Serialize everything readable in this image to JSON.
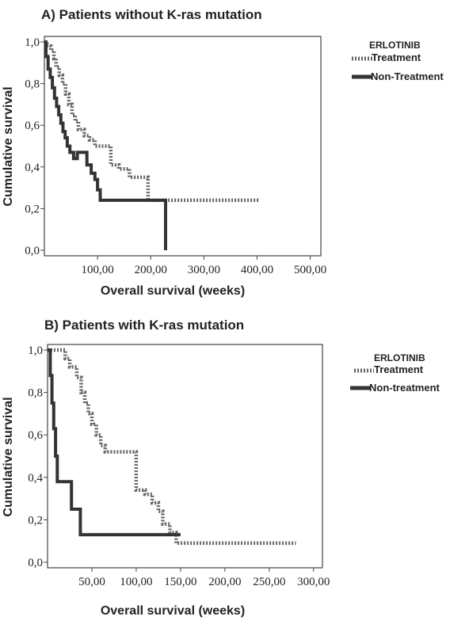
{
  "chart_data": [
    {
      "type": "line",
      "title": "A) Patients without K-ras mutation",
      "xlabel": "Overall survival (weeks)",
      "ylabel": "Cumulative survival",
      "xlim": [
        0,
        520
      ],
      "ylim": [
        0,
        1.0
      ],
      "xticks": [
        "100,00",
        "200,00",
        "300,00",
        "400,00",
        "500,00"
      ],
      "yticks": [
        "0,0",
        "0,2",
        "0,4",
        "0,6",
        "0,8",
        "1,0"
      ],
      "legend_title": "ERLOTINIB",
      "legend_position": "right",
      "series": [
        {
          "name": "Treatment",
          "style": "dotted",
          "color": "#666666",
          "x": [
            0,
            5,
            12,
            18,
            22,
            28,
            34,
            40,
            46,
            52,
            58,
            64,
            75,
            85,
            95,
            125,
            140,
            160,
            195,
            230,
            405
          ],
          "y": [
            1.0,
            0.98,
            0.96,
            0.92,
            0.88,
            0.84,
            0.8,
            0.75,
            0.7,
            0.65,
            0.62,
            0.58,
            0.55,
            0.53,
            0.5,
            0.41,
            0.39,
            0.35,
            0.24,
            0.24,
            0.24
          ]
        },
        {
          "name": "Non-Treatment",
          "style": "solid",
          "color": "#333333",
          "x": [
            0,
            3,
            7,
            11,
            15,
            19,
            23,
            27,
            31,
            35,
            39,
            43,
            48,
            55,
            62,
            80,
            88,
            95,
            100,
            105,
            225,
            228
          ],
          "y": [
            1.0,
            0.93,
            0.87,
            0.83,
            0.78,
            0.73,
            0.69,
            0.65,
            0.61,
            0.57,
            0.54,
            0.5,
            0.47,
            0.44,
            0.47,
            0.41,
            0.37,
            0.34,
            0.29,
            0.24,
            0.24,
            0.0
          ]
        }
      ]
    },
    {
      "type": "line",
      "title": "B) Patients with K-ras mutation",
      "xlabel": "Overall survival (weeks)",
      "ylabel": "Cumulative survival",
      "xlim": [
        0,
        310
      ],
      "ylim": [
        0,
        1.0
      ],
      "xticks": [
        "50,00",
        "100,00",
        "150,00",
        "200,00",
        "250,00",
        "300,00"
      ],
      "yticks": [
        "0,0",
        "0,2",
        "0,4",
        "0,6",
        "0,8",
        "1,0"
      ],
      "legend_title": "ERLOTINIB",
      "legend_position": "right",
      "series": [
        {
          "name": "Treatment",
          "style": "dotted",
          "color": "#666666",
          "x": [
            0,
            20,
            25,
            33,
            38,
            42,
            46,
            50,
            55,
            60,
            65,
            100,
            110,
            118,
            125,
            130,
            138,
            145,
            280
          ],
          "y": [
            1.0,
            0.96,
            0.92,
            0.87,
            0.8,
            0.75,
            0.7,
            0.65,
            0.6,
            0.55,
            0.52,
            0.34,
            0.32,
            0.28,
            0.24,
            0.18,
            0.14,
            0.09,
            0.09
          ]
        },
        {
          "name": "Non-treatment",
          "style": "solid",
          "color": "#333333",
          "x": [
            0,
            3,
            5,
            7,
            9,
            11,
            13,
            27,
            32,
            37,
            150
          ],
          "y": [
            1.0,
            0.88,
            0.75,
            0.63,
            0.5,
            0.38,
            0.38,
            0.25,
            0.25,
            0.13,
            0.13
          ]
        }
      ]
    }
  ]
}
